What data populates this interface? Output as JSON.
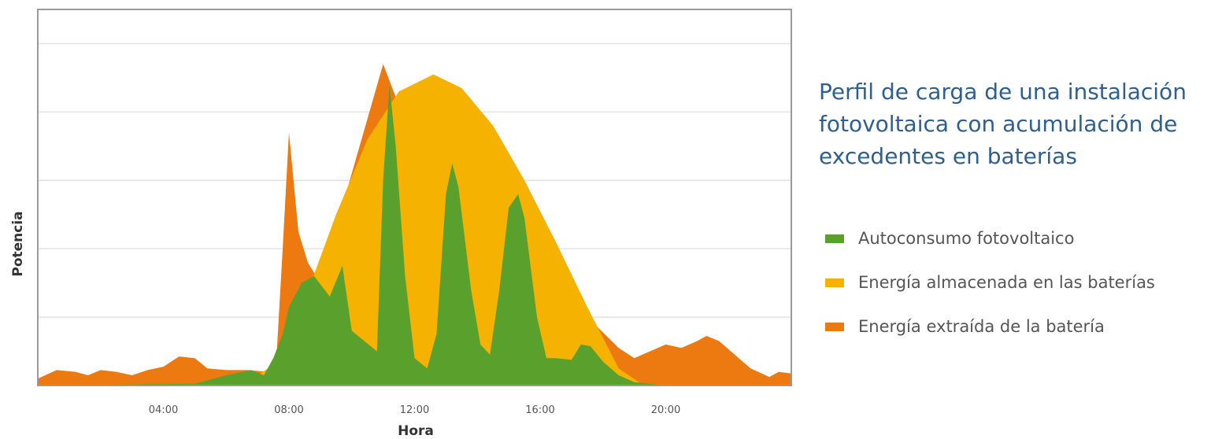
{
  "chart_data": {
    "type": "area",
    "title": [
      "Perfil de carga de una instalación",
      "fotovoltaica con acumulación de",
      "excedentes en baterías"
    ],
    "xlabel": "Hora",
    "ylabel": "Potencia",
    "xlim": [
      0,
      24
    ],
    "ylim": [
      0,
      11
    ],
    "x_ticks": [
      {
        "x": 4,
        "label": "04:00"
      },
      {
        "x": 8,
        "label": "08:00"
      },
      {
        "x": 12,
        "label": "12:00"
      },
      {
        "x": 16,
        "label": "16:00"
      },
      {
        "x": 20,
        "label": "20:00"
      }
    ],
    "grid": "horizontal",
    "legend_position": "right",
    "series": [
      {
        "name": "Energía extraída de la batería",
        "color": "#ec7a10",
        "points": [
          [
            0,
            0.2
          ],
          [
            0.6,
            0.45
          ],
          [
            1.2,
            0.4
          ],
          [
            1.6,
            0.3
          ],
          [
            2.0,
            0.45
          ],
          [
            2.5,
            0.4
          ],
          [
            3.0,
            0.3
          ],
          [
            3.5,
            0.45
          ],
          [
            4.0,
            0.55
          ],
          [
            4.5,
            0.85
          ],
          [
            5.0,
            0.8
          ],
          [
            5.4,
            0.5
          ],
          [
            6.0,
            0.45
          ],
          [
            6.7,
            0.45
          ],
          [
            7.3,
            0.4
          ],
          [
            7.6,
            0.8
          ],
          [
            7.8,
            4.0
          ],
          [
            8.0,
            7.4
          ],
          [
            8.3,
            4.5
          ],
          [
            8.6,
            3.6
          ],
          [
            9.0,
            3.0
          ],
          [
            11.0,
            9.4
          ],
          [
            12.0,
            7.0
          ],
          [
            18.5,
            1.1
          ],
          [
            19.0,
            0.8
          ],
          [
            19.5,
            1.0
          ],
          [
            20.0,
            1.2
          ],
          [
            20.5,
            1.1
          ],
          [
            21.0,
            1.3
          ],
          [
            21.3,
            1.45
          ],
          [
            21.7,
            1.3
          ],
          [
            22.2,
            0.9
          ],
          [
            22.7,
            0.5
          ],
          [
            23.3,
            0.25
          ],
          [
            23.6,
            0.4
          ],
          [
            24,
            0.35
          ]
        ]
      },
      {
        "name": "Energía almacenada en las baterías",
        "color": "#f6b200",
        "points": [
          [
            6.5,
            0
          ],
          [
            7.5,
            0.6
          ],
          [
            8.5,
            2.5
          ],
          [
            9.5,
            5.0
          ],
          [
            10.5,
            7.2
          ],
          [
            11.5,
            8.6
          ],
          [
            12.6,
            9.1
          ],
          [
            13.5,
            8.7
          ],
          [
            14.5,
            7.6
          ],
          [
            15.5,
            6.0
          ],
          [
            16.5,
            4.2
          ],
          [
            17.5,
            2.3
          ],
          [
            18.5,
            0.5
          ],
          [
            19.3,
            0
          ],
          [
            19.5,
            0
          ]
        ]
      },
      {
        "name": "Autoconsumo fotovoltaico",
        "color": "#5aa02c",
        "points": [
          [
            0,
            0
          ],
          [
            5.0,
            0.05
          ],
          [
            6.0,
            0.3
          ],
          [
            6.8,
            0.45
          ],
          [
            7.2,
            0.3
          ],
          [
            7.5,
            0.8
          ],
          [
            7.8,
            1.5
          ],
          [
            8.0,
            2.3
          ],
          [
            8.4,
            3.0
          ],
          [
            8.8,
            3.2
          ],
          [
            9.3,
            2.6
          ],
          [
            9.7,
            3.5
          ],
          [
            10.0,
            1.6
          ],
          [
            10.4,
            1.3
          ],
          [
            10.8,
            1.0
          ],
          [
            11.0,
            6.0
          ],
          [
            11.2,
            8.8
          ],
          [
            11.4,
            7.0
          ],
          [
            11.7,
            3.2
          ],
          [
            12.0,
            0.8
          ],
          [
            12.4,
            0.5
          ],
          [
            12.7,
            1.5
          ],
          [
            13.0,
            5.6
          ],
          [
            13.2,
            6.5
          ],
          [
            13.4,
            5.8
          ],
          [
            13.8,
            2.8
          ],
          [
            14.1,
            1.2
          ],
          [
            14.4,
            0.9
          ],
          [
            14.7,
            2.8
          ],
          [
            15.0,
            5.2
          ],
          [
            15.3,
            5.6
          ],
          [
            15.5,
            4.9
          ],
          [
            15.9,
            2.0
          ],
          [
            16.2,
            0.8
          ],
          [
            16.5,
            0.8
          ],
          [
            17.0,
            0.75
          ],
          [
            17.3,
            1.2
          ],
          [
            17.6,
            1.15
          ],
          [
            18.0,
            0.7
          ],
          [
            18.5,
            0.3
          ],
          [
            19.0,
            0.1
          ],
          [
            20.0,
            0
          ],
          [
            24,
            0
          ]
        ]
      }
    ]
  },
  "legend_order": [
    2,
    1,
    0
  ]
}
